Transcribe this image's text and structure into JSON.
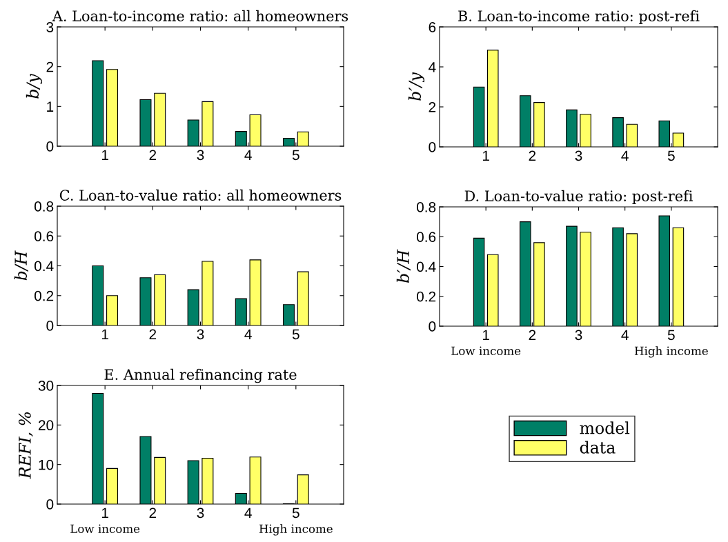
{
  "chart_data": [
    {
      "type": "bar",
      "title": "A. Loan-to-income ratio: all homeowners",
      "ylabel": "b/y",
      "x": [
        1,
        2,
        3,
        4,
        5
      ],
      "xlim": [
        0,
        6
      ],
      "xticks": [
        1,
        2,
        3,
        4,
        5
      ],
      "ylim": [
        0,
        3
      ],
      "yticks": [
        0,
        1,
        2,
        3
      ],
      "grid": false,
      "legend": false,
      "series": [
        {
          "color": "#007f66",
          "values": [
            2.15,
            1.17,
            0.66,
            0.37,
            0.2
          ]
        },
        {
          "color": "#ffff66",
          "values": [
            1.93,
            1.33,
            1.12,
            0.79,
            0.36
          ]
        }
      ]
    },
    {
      "type": "bar",
      "title": "B. Loan-to-income ratio: post-refi",
      "ylabel": "b′/y",
      "x": [
        1,
        2,
        3,
        4,
        5
      ],
      "xlim": [
        0,
        6
      ],
      "xticks": [
        1,
        2,
        3,
        4,
        5
      ],
      "ylim": [
        0,
        6
      ],
      "yticks": [
        0,
        2,
        4,
        6
      ],
      "grid": false,
      "legend": false,
      "series": [
        {
          "color": "#007f66",
          "values": [
            2.99,
            2.56,
            1.85,
            1.46,
            1.3
          ]
        },
        {
          "color": "#ffff66",
          "values": [
            4.84,
            2.22,
            1.63,
            1.13,
            0.69
          ]
        }
      ]
    },
    {
      "type": "bar",
      "title": "C. Loan-to-value ratio: all homeowners",
      "ylabel": "b/H",
      "x": [
        1,
        2,
        3,
        4,
        5
      ],
      "xlim": [
        0,
        6
      ],
      "xticks": [
        1,
        2,
        3,
        4,
        5
      ],
      "ylim": [
        0,
        0.8
      ],
      "yticks": [
        0,
        0.2,
        0.4,
        0.6,
        0.8
      ],
      "grid": false,
      "legend": false,
      "series": [
        {
          "color": "#007f66",
          "values": [
            0.4,
            0.32,
            0.24,
            0.18,
            0.14
          ]
        },
        {
          "color": "#ffff66",
          "values": [
            0.2,
            0.34,
            0.43,
            0.44,
            0.36
          ]
        }
      ]
    },
    {
      "type": "bar",
      "title": "D. Loan-to-value ratio: post-refi",
      "ylabel": "b′/H",
      "x": [
        1,
        2,
        3,
        4,
        5
      ],
      "xlim": [
        0,
        6
      ],
      "xticks": [
        1,
        2,
        3,
        4,
        5
      ],
      "ylim": [
        0,
        0.8
      ],
      "yticks": [
        0,
        0.2,
        0.4,
        0.6,
        0.8
      ],
      "grid": false,
      "legend": false,
      "annotations": [
        "Low income",
        "High income"
      ],
      "series": [
        {
          "color": "#007f66",
          "values": [
            0.59,
            0.7,
            0.67,
            0.66,
            0.74
          ]
        },
        {
          "color": "#ffff66",
          "values": [
            0.48,
            0.56,
            0.63,
            0.62,
            0.66
          ]
        }
      ]
    },
    {
      "type": "bar",
      "title": "E. Annual refinancing rate",
      "ylabel": "REFI, %",
      "x": [
        1,
        2,
        3,
        4,
        5
      ],
      "xlim": [
        0,
        6
      ],
      "xticks": [
        1,
        2,
        3,
        4,
        5
      ],
      "ylim": [
        0,
        30
      ],
      "yticks": [
        0,
        10,
        20,
        30
      ],
      "grid": false,
      "legend": "right",
      "annotations": [
        "Low income",
        "High income"
      ],
      "series": [
        {
          "name": "model",
          "color": "#007f66",
          "values": [
            28.0,
            17.1,
            11.0,
            2.7,
            0.1
          ]
        },
        {
          "name": "data",
          "color": "#ffff66",
          "values": [
            9.0,
            11.8,
            11.6,
            11.9,
            7.4
          ]
        }
      ]
    }
  ]
}
